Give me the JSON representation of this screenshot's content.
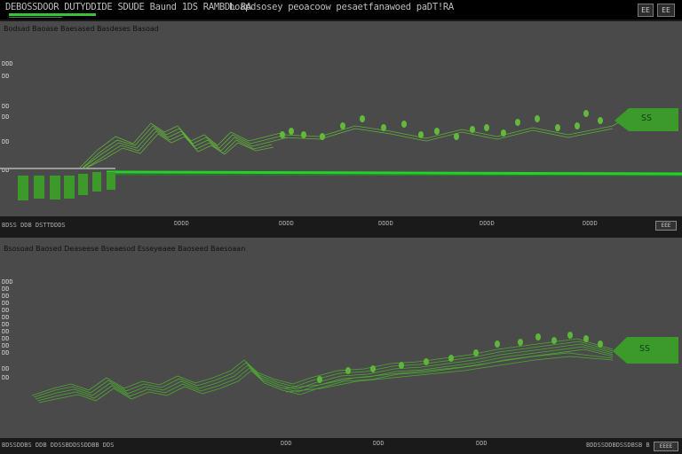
{
  "window": {
    "title": "DEBOSSDOOR DUTYDDIDE SDUDE Baund 1DS RAMBDL RA",
    "subtitle": "hoapdsosey peoacoow pesaetfanawoed paDT!RA",
    "button_a": "EE",
    "button_b": "EE"
  },
  "panel1": {
    "label": "Bodsad Baoase Baesased Basdeses Basoad",
    "ticks": [
      "DDD",
      "DD",
      "DD",
      "DD",
      "DD",
      "DD"
    ],
    "tag_label": "SS",
    "axis": {
      "left": "BDSS DDB  DSTTDDDS",
      "labels": [
        "DDDD",
        "DDDD",
        "DDDD",
        "DDDD",
        "DDDD"
      ],
      "button": "EEE"
    }
  },
  "panel2": {
    "label": "Bsosoad Baosed Deaseese Bseaesod Esseyeaee Baoseed Baesoaan",
    "ticks": [
      "DDD",
      "DD",
      "DD",
      "DD",
      "DD",
      "DD",
      "DD",
      "DD",
      "DD",
      "DD",
      "DD",
      "DD",
      "DD"
    ],
    "tag_label": "SS",
    "axis": {
      "left": "BDSSDDBS DDB  DDSSBDDSSDDBB  DDS",
      "labels": [
        "DDD",
        "DDD",
        "DDD"
      ],
      "right": "BDDSSDDBDSSDBSB  B",
      "button": "EEEE"
    }
  },
  "colors": {
    "panel_bg": "#4a4a4a",
    "chrome_bg": "#000000",
    "accent_green": "#39c23a",
    "signal_green": "#5fbf3a"
  }
}
